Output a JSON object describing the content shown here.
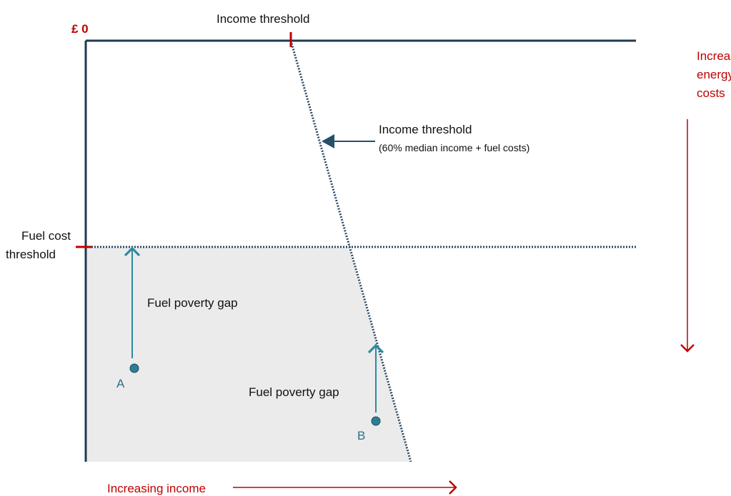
{
  "axes": {
    "origin_label": "£ 0",
    "x_label": "Increasing income",
    "y_label": [
      "Increasing",
      "energy",
      "costs"
    ]
  },
  "thresholds": {
    "income_top": "Income threshold",
    "income_annotation": {
      "title": "Income threshold",
      "detail": "(60% median income + fuel costs)"
    },
    "fuel_cost": [
      "Fuel cost",
      "threshold"
    ]
  },
  "points": [
    {
      "label": "A",
      "gap_label": "Fuel poverty gap"
    },
    {
      "label": "B",
      "gap_label": "Fuel poverty gap"
    }
  ]
}
